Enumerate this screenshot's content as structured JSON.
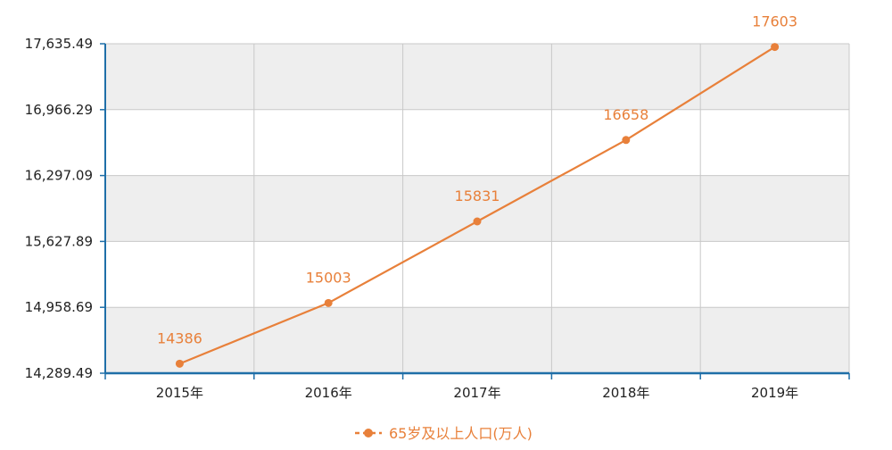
{
  "chart_data": {
    "type": "line",
    "title": "",
    "xlabel": "",
    "ylabel": "",
    "categories": [
      "2015年",
      "2016年",
      "2017年",
      "2018年",
      "2019年"
    ],
    "series": [
      {
        "name": "65岁及以上人口(万人)",
        "values": [
          14386,
          15003,
          15831,
          16658,
          17603
        ],
        "data_labels": [
          "14386",
          "15003",
          "15831",
          "16658",
          "17603"
        ],
        "color": "#E8803A"
      }
    ],
    "ylim": [
      14289.49,
      17635.49
    ],
    "yticks": [
      14289.49,
      14958.69,
      15627.89,
      16297.09,
      16966.29,
      17635.49
    ],
    "ytick_labels": [
      "14,289.49",
      "14,958.69",
      "15,627.89",
      "16,297.09",
      "16,966.29",
      "17,635.49"
    ],
    "grid": true,
    "band_colors": [
      "#eeeeee",
      "#ffffff"
    ],
    "axis_color": "#1f6fa8",
    "legend": {
      "position": "bottom",
      "marker_color": "#E8803A"
    }
  }
}
